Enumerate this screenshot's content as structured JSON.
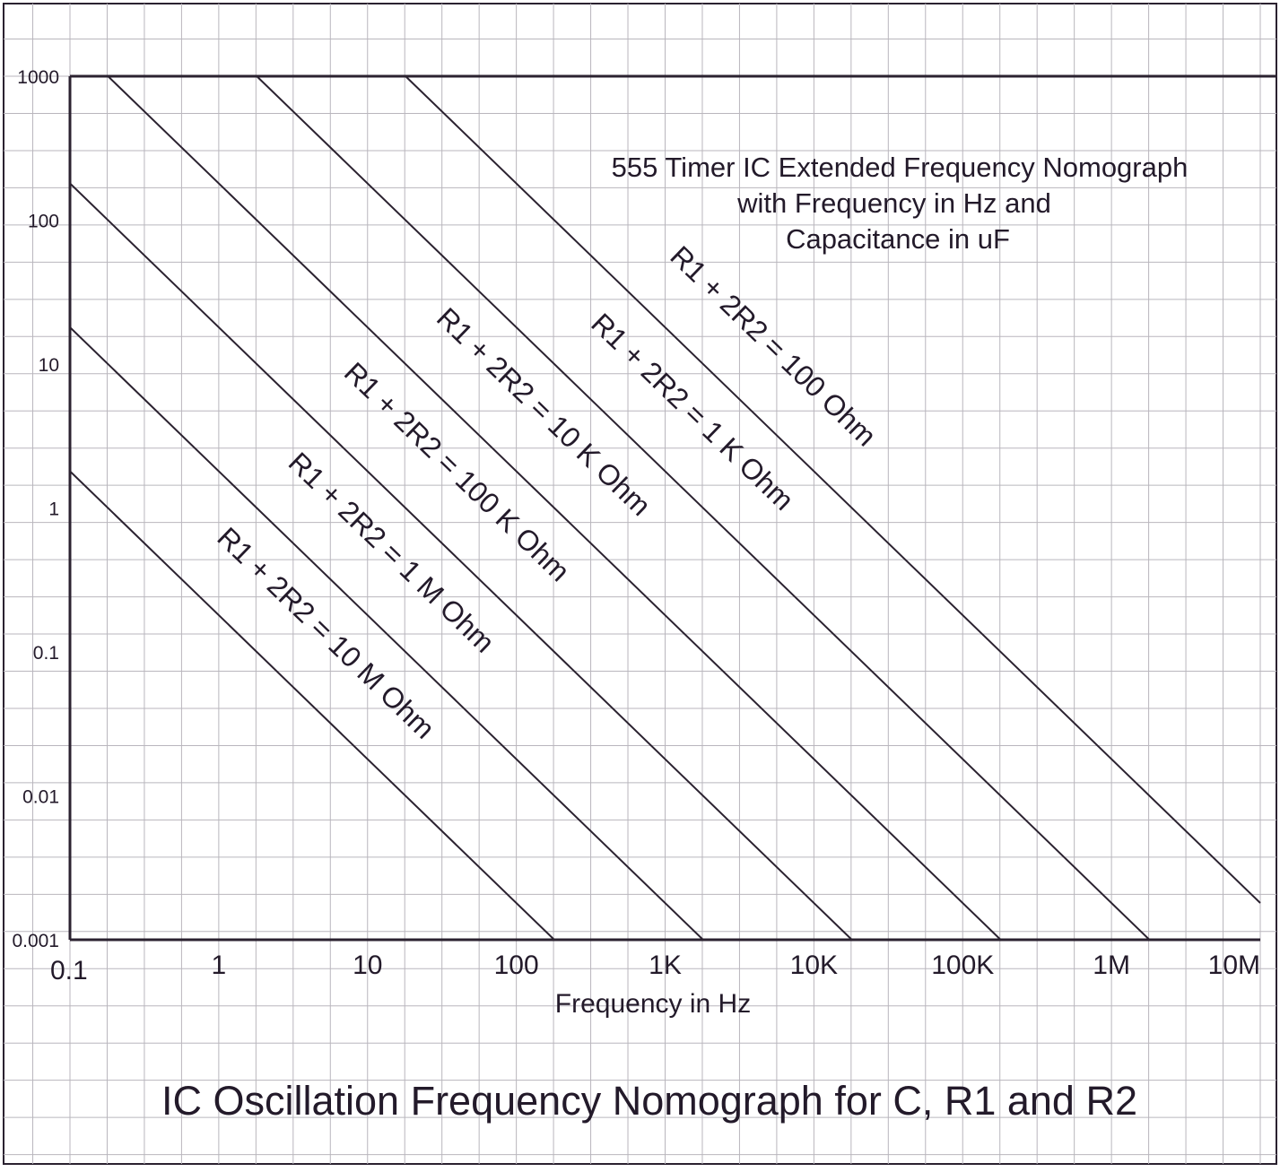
{
  "chart_data": {
    "type": "line",
    "title": "IC Oscillation Frequency Nomograph for C, R1 and R2",
    "subtitle_lines": [
      "555 Timer IC Extended Frequency Nomograph",
      "with Frequency in Hz and",
      "Capacitance in uF"
    ],
    "xlabel": "Frequency in Hz",
    "ylabel": "",
    "x_scale": "log",
    "y_scale": "log",
    "xlim": [
      0.1,
      10000000
    ],
    "ylim": [
      0.001,
      1000
    ],
    "grid": true,
    "x_ticks": [
      {
        "value": 0.1,
        "label": "0.1"
      },
      {
        "value": 1,
        "label": "1"
      },
      {
        "value": 10,
        "label": "10"
      },
      {
        "value": 100,
        "label": "100"
      },
      {
        "value": 1000,
        "label": "1K"
      },
      {
        "value": 10000,
        "label": "10K"
      },
      {
        "value": 100000,
        "label": "100K"
      },
      {
        "value": 1000000,
        "label": "1M"
      },
      {
        "value": 10000000,
        "label": "10M"
      }
    ],
    "y_ticks": [
      {
        "value": 1000,
        "label": "1000"
      },
      {
        "value": 100,
        "label": "100"
      },
      {
        "value": 10,
        "label": "10"
      },
      {
        "value": 1,
        "label": "1"
      },
      {
        "value": 0.1,
        "label": "0.1"
      },
      {
        "value": 0.01,
        "label": "0.01"
      },
      {
        "value": 0.001,
        "label": "0.001"
      }
    ],
    "series": [
      {
        "name": "R1 + 2R2 = 10 M Ohm",
        "x": [
          0.1,
          180
        ],
        "y": [
          1.8,
          0.001
        ]
      },
      {
        "name": "R1 + 2R2 = 1 M Ohm",
        "x": [
          0.1,
          1800
        ],
        "y": [
          18,
          0.001
        ]
      },
      {
        "name": "R1 + 2R2 = 100 K Ohm",
        "x": [
          0.1,
          18000
        ],
        "y": [
          180,
          0.001
        ]
      },
      {
        "name": "R1 + 2R2 = 10 K Ohm",
        "x": [
          0.18,
          180000
        ],
        "y": [
          1000,
          0.001
        ]
      },
      {
        "name": "R1 + 2R2 = 1 K Ohm",
        "x": [
          1.8,
          1800000
        ],
        "y": [
          1000,
          0.001
        ]
      },
      {
        "name": "R1 + 2R2 = 100 Ohm",
        "x": [
          18,
          10000000
        ],
        "y": [
          1000,
          0.0018
        ]
      }
    ]
  }
}
